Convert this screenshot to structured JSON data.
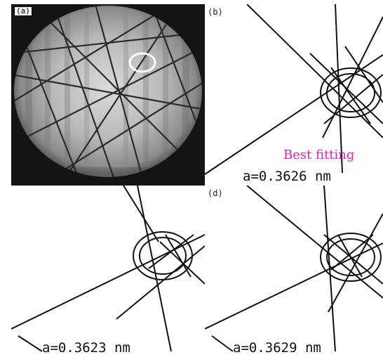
{
  "panels": {
    "a": {
      "label": "(a)"
    },
    "b": {
      "label": "(b)",
      "lattice": "a=0.3626 nm",
      "annotation": "Best fitting"
    },
    "c": {
      "lattice": "a=0.3623 nm"
    },
    "d": {
      "label": "(d)",
      "lattice": "a=0.3629 nm"
    }
  },
  "colors": {
    "annotation": "#e01fb8",
    "line": "#111111",
    "pattern_background": "#1a1a1a"
  }
}
